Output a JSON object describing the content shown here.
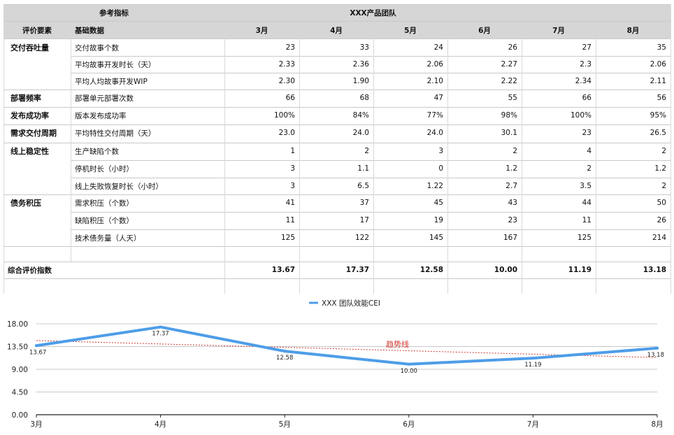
{
  "table": {
    "header_top": {
      "ref": "参考指标",
      "team": "XXX产品团队"
    },
    "header_sub": {
      "factor": "评价要素",
      "base": "基础数据"
    },
    "months": [
      "3月",
      "4月",
      "5月",
      "6月",
      "7月",
      "8月"
    ],
    "rows": [
      {
        "category": "交付吞吐量",
        "metric": "交付故事个数",
        "values": [
          "23",
          "33",
          "24",
          "26",
          "27",
          "35"
        ]
      },
      {
        "category": "",
        "metric": "平均故事开发时长（天）",
        "values": [
          "2.33",
          "2.36",
          "2.06",
          "2.27",
          "2.3",
          "2.06"
        ]
      },
      {
        "category": "",
        "metric": "平均人均故事开发WIP",
        "values": [
          "2.30",
          "1.90",
          "2.10",
          "2.22",
          "2.34",
          "2.11"
        ]
      },
      {
        "category": "部署频率",
        "metric": "部署单元部署次数",
        "values": [
          "66",
          "68",
          "47",
          "55",
          "66",
          "56"
        ]
      },
      {
        "category": "发布成功率",
        "metric": "版本发布成功率",
        "values": [
          "100%",
          "84%",
          "77%",
          "98%",
          "100%",
          "95%"
        ]
      },
      {
        "category": "需求交付周期",
        "metric": "平均特性交付周期（天）",
        "values": [
          "23.0",
          "24.0",
          "24.0",
          "30.1",
          "23",
          "26.5"
        ]
      },
      {
        "category": "线上稳定性",
        "metric": "生产缺陷个数",
        "values": [
          "1",
          "2",
          "3",
          "2",
          "4",
          "2"
        ]
      },
      {
        "category": "",
        "metric": "停机时长（小时）",
        "values": [
          "3",
          "1.1",
          "0",
          "1.2",
          "2",
          "1.2"
        ]
      },
      {
        "category": "",
        "metric": "线上失败恢复时长（小时）",
        "values": [
          "3",
          "6.5",
          "1.22",
          "2.7",
          "3.5",
          "2"
        ]
      },
      {
        "category": "债务积压",
        "metric": "需求积压（个数）",
        "values": [
          "41",
          "37",
          "45",
          "43",
          "44",
          "50"
        ]
      },
      {
        "category": "",
        "metric": "缺陷积压（个数）",
        "values": [
          "11",
          "17",
          "19",
          "23",
          "11",
          "26"
        ]
      },
      {
        "category": "",
        "metric": "技术债务量（人天）",
        "values": [
          "125",
          "122",
          "145",
          "167",
          "125",
          "214"
        ]
      }
    ],
    "total": {
      "label": "综合评价指数",
      "values": [
        "13.67",
        "17.37",
        "12.58",
        "10.00",
        "11.19",
        "13.18"
      ]
    }
  },
  "chart_data": {
    "type": "line",
    "categories": [
      "3月",
      "4月",
      "5月",
      "6月",
      "7月",
      "8月"
    ],
    "series": [
      {
        "name": "XXX 团队效能CEI",
        "values": [
          13.67,
          17.37,
          12.58,
          10.0,
          11.19,
          13.18
        ],
        "color": "#4e9de8"
      }
    ],
    "data_labels": [
      "13.67",
      "17.37",
      "12.58",
      "10.00",
      "11.19",
      "13.18"
    ],
    "trendline": {
      "label": "趋势线",
      "color": "#d0392f",
      "type": "linear"
    },
    "yticks": [
      "0.00",
      "4.50",
      "9.00",
      "13.50",
      "18.00"
    ],
    "ylim": [
      0,
      18
    ],
    "legend_position": "top-center",
    "grid": true
  },
  "colors": {
    "header_bg": "#d6d6d6",
    "line": "#4e9de8",
    "trend": "#d0392f",
    "grid": "#c8c8c8"
  }
}
